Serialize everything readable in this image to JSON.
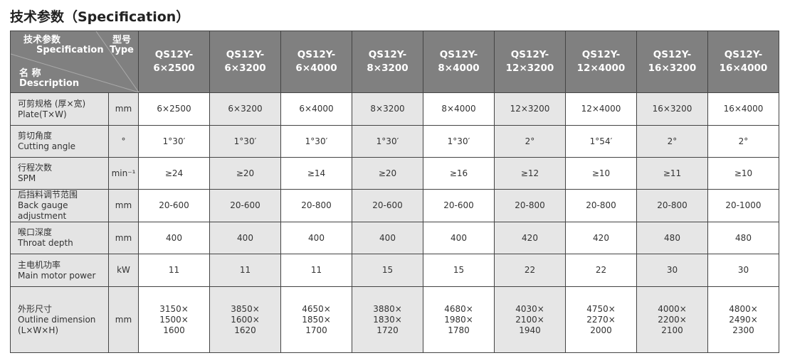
{
  "title": "技术参数（Specification）",
  "corner": {
    "spec_cn": "技术参数",
    "spec_en": "Specification",
    "type_cn": "型号",
    "type_en": "Type",
    "name_cn": "名 称",
    "name_en": "Description"
  },
  "models": [
    {
      "line1": "QS12Y-",
      "line2": "6×2500"
    },
    {
      "line1": "QS12Y-",
      "line2": "6×3200"
    },
    {
      "line1": "QS12Y-",
      "line2": "6×4000"
    },
    {
      "line1": "QS12Y-",
      "line2": "8×3200"
    },
    {
      "line1": "QS12Y-",
      "line2": "8×4000"
    },
    {
      "line1": "QS12Y-",
      "line2": "12×3200"
    },
    {
      "line1": "QS12Y-",
      "line2": "12×4000"
    },
    {
      "line1": "QS12Y-",
      "line2": "16×3200"
    },
    {
      "line1": "QS12Y-",
      "line2": "16×4000"
    }
  ],
  "rows": [
    {
      "cn": "可剪规格 (厚×宽)",
      "en": "Plate(T×W)",
      "unit": "mm",
      "values": [
        "6×2500",
        "6×3200",
        "6×4000",
        "8×3200",
        "8×4000",
        "12×3200",
        "12×4000",
        "16×3200",
        "16×4000"
      ]
    },
    {
      "cn": "剪切角度",
      "en": "Cutting angle",
      "unit": "°",
      "values": [
        "1°30′",
        "1°30′",
        "1°30′",
        "1°30′",
        "1°30′",
        "2°",
        "1°54′",
        "2°",
        "2°"
      ]
    },
    {
      "cn": "行程次数",
      "en": "SPM",
      "unit": "min⁻¹",
      "values": [
        "≥24",
        "≥20",
        "≥14",
        "≥20",
        "≥16",
        "≥12",
        "≥10",
        "≥11",
        "≥10"
      ]
    },
    {
      "cn": "后挡料调节范围",
      "en": "Back gauge adjustment",
      "unit": "mm",
      "values": [
        "20-600",
        "20-600",
        "20-800",
        "20-600",
        "20-600",
        "20-800",
        "20-800",
        "20-800",
        "20-1000"
      ]
    },
    {
      "cn": "喉口深度",
      "en": "Throat depth",
      "unit": "mm",
      "values": [
        "400",
        "400",
        "400",
        "400",
        "400",
        "420",
        "420",
        "480",
        "480"
      ]
    },
    {
      "cn": "主电机功率",
      "en": "Main motor power",
      "unit": "kW",
      "values": [
        "11",
        "11",
        "11",
        "15",
        "15",
        "22",
        "22",
        "30",
        "30"
      ]
    },
    {
      "cn": "外形尺寸",
      "en": "Outline dimension",
      "en2": "(L×W×H)",
      "unit": "mm",
      "values": [
        [
          "3150×",
          "1500×",
          "1600"
        ],
        [
          "3850×",
          "1600×",
          "1620"
        ],
        [
          "4650×",
          "1850×",
          "1700"
        ],
        [
          "3880×",
          "1830×",
          "1720"
        ],
        [
          "4680×",
          "1980×",
          "1780"
        ],
        [
          "4030×",
          "2100×",
          "1940"
        ],
        [
          "4750×",
          "2270×",
          "2000"
        ],
        [
          "4000×",
          "2200×",
          "2100"
        ],
        [
          "4800×",
          "2490×",
          "2300"
        ]
      ]
    }
  ]
}
